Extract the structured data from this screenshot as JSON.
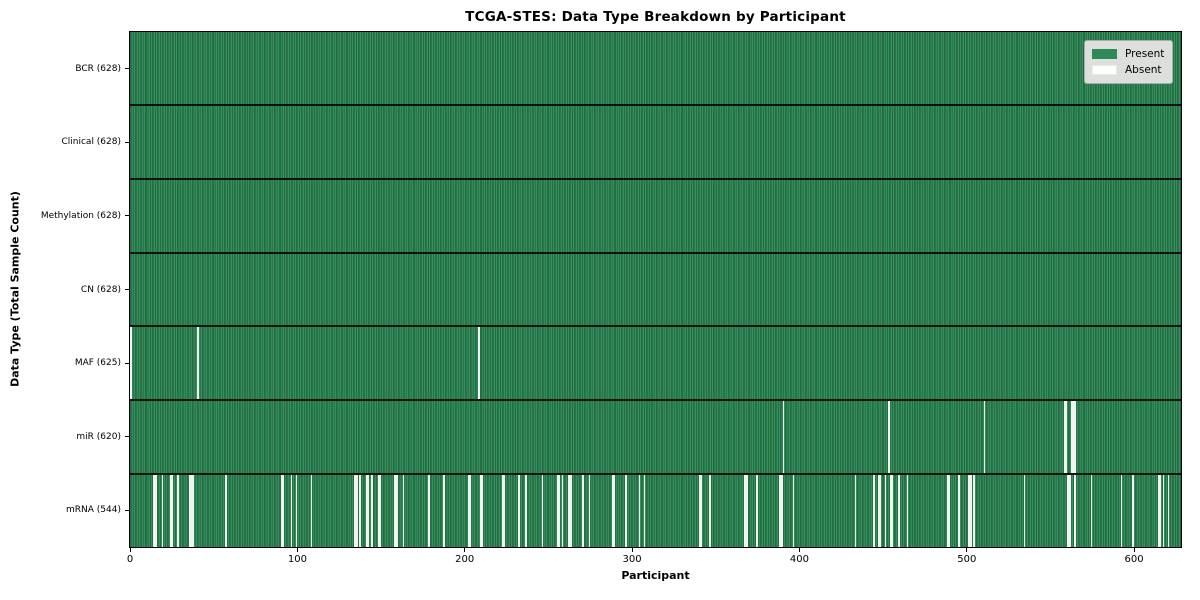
{
  "chart_data": {
    "type": "heatmap",
    "title": "TCGA-STES: Data Type Breakdown by Participant",
    "xlabel": "Participant",
    "ylabel": "Data Type (Total Sample Count)",
    "xlim": [
      0,
      628
    ],
    "x_ticks": [
      0,
      100,
      200,
      300,
      400,
      500,
      600
    ],
    "grid": false,
    "legend_position": "upper right",
    "colors": {
      "present": "#2e8b57",
      "present_dark_edge": "#1a5232",
      "present_light": "#3f9565",
      "absent": "#f2f3f0",
      "row_separator": "#0e140e",
      "legend_bg": "#dcdfdb",
      "legend_border": "#a8ada8"
    },
    "legend": [
      {
        "label": "Present",
        "color": "#2e8b57"
      },
      {
        "label": "Absent",
        "color": "#ffffff"
      }
    ],
    "rows": [
      {
        "label": "BCR (628)",
        "present_count": 628,
        "absent_participants": []
      },
      {
        "label": "Clinical (628)",
        "present_count": 628,
        "absent_participants": []
      },
      {
        "label": "Methylation (628)",
        "present_count": 628,
        "absent_participants": []
      },
      {
        "label": "CN (628)",
        "present_count": 628,
        "absent_participants": []
      },
      {
        "label": "MAF (625)",
        "present_count": 625,
        "absent_participants": [
          0,
          40,
          208
        ]
      },
      {
        "label": "miR (620)",
        "present_count": 620,
        "absent_participants": [
          390,
          453,
          510,
          558,
          559,
          562,
          563,
          564
        ]
      },
      {
        "label": "mRNA (544)",
        "present_count": 544,
        "absent_participants": [
          14,
          15,
          19,
          24,
          25,
          28,
          35,
          36,
          37,
          57,
          90,
          91,
          96,
          99,
          108,
          134,
          135,
          137,
          141,
          142,
          144,
          148,
          149,
          158,
          159,
          163,
          178,
          187,
          202,
          203,
          209,
          210,
          222,
          223,
          232,
          236,
          246,
          255,
          256,
          258,
          262,
          263,
          270,
          274,
          288,
          289,
          296,
          304,
          307,
          340,
          341,
          346,
          367,
          368,
          374,
          388,
          389,
          396,
          433,
          444,
          447,
          448,
          451,
          454,
          455,
          459,
          464,
          488,
          489,
          495,
          501,
          502,
          504,
          534,
          560,
          561,
          564,
          574,
          592,
          599,
          614,
          615,
          617,
          620
        ]
      }
    ]
  }
}
